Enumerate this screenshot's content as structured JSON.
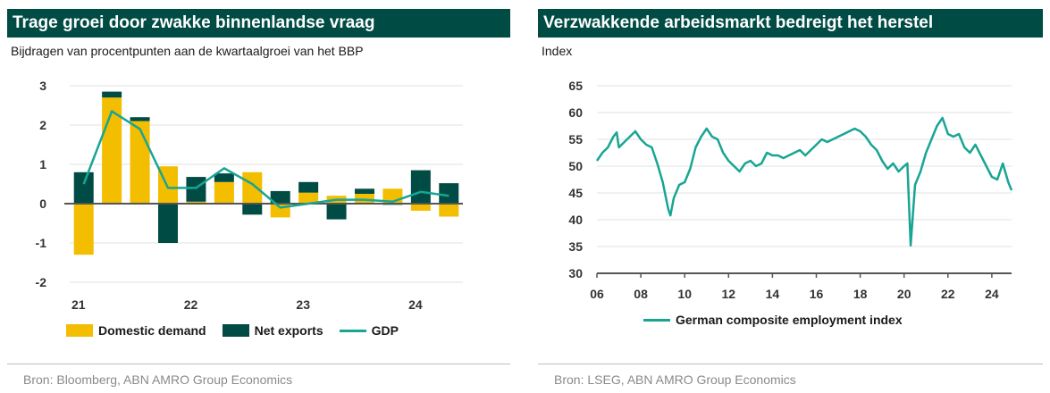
{
  "colors": {
    "title_bg": "#004c45",
    "domestic": "#f3bd00",
    "net_exports": "#004c45",
    "gdp": "#18a594",
    "axis": "#555555",
    "grid": "#e2e2e2"
  },
  "left": {
    "title": "Trage groei door zwakke binnenlandse vraag",
    "subtitle": "Bijdragen van procentpunten aan de kwartaalgroei van het BBP",
    "source": "Bron: Bloomberg, ABN AMRO Group Economics",
    "legend": [
      "Domestic demand",
      "Net exports",
      "GDP"
    ]
  },
  "right": {
    "title": "Verzwakkende arbeidsmarkt bedreigt het herstel",
    "subtitle": "Index",
    "source": "Bron: LSEG, ABN AMRO Group Economics",
    "legend": [
      "German composite employment index"
    ]
  },
  "chart_data": [
    {
      "type": "bar",
      "title": "Trage groei door zwakke binnenlandse vraag",
      "subtitle": "Bijdragen van procentpunten aan de kwartaalgroei van het BBP",
      "stacked": true,
      "categories": [
        "2021-Q1",
        "2021-Q2",
        "2021-Q3",
        "2021-Q4",
        "2022-Q1",
        "2022-Q2",
        "2022-Q3",
        "2022-Q4",
        "2023-Q1",
        "2023-Q2",
        "2023-Q3",
        "2023-Q4",
        "2024-Q1",
        "2024-Q2"
      ],
      "x_tick_labels": [
        "21",
        "22",
        "23",
        "24"
      ],
      "x_tick_positions": [
        0,
        4,
        8,
        12
      ],
      "y_tick_labels": [
        "3",
        "2",
        "1",
        "0",
        "-1",
        "-2"
      ],
      "ylim": [
        -2,
        3
      ],
      "series": [
        {
          "name": "Domestic demand",
          "kind": "bar",
          "values": [
            -1.3,
            2.7,
            2.1,
            0.95,
            0.05,
            0.55,
            0.8,
            -0.35,
            0.28,
            0.2,
            0.25,
            0.38,
            -0.18,
            -0.33
          ]
        },
        {
          "name": "Net exports",
          "kind": "bar",
          "values": [
            0.8,
            0.15,
            0.1,
            -1.0,
            0.63,
            0.22,
            -0.28,
            0.32,
            0.27,
            -0.4,
            0.13,
            -0.03,
            0.85,
            0.52
          ]
        },
        {
          "name": "GDP",
          "kind": "line",
          "values": [
            0.5,
            2.35,
            1.9,
            0.4,
            0.4,
            0.9,
            0.5,
            -0.1,
            0.0,
            0.1,
            0.1,
            0.05,
            0.3,
            0.2
          ]
        }
      ],
      "legend_position": "bottom",
      "grid": true
    },
    {
      "type": "line",
      "title": "Verzwakkende arbeidsmarkt bedreigt het herstel",
      "ylabel": "Index",
      "x_tick_labels": [
        "06",
        "08",
        "10",
        "12",
        "14",
        "16",
        "18",
        "20",
        "22",
        "24"
      ],
      "x_tick_years": [
        2006,
        2008,
        2010,
        2012,
        2014,
        2016,
        2018,
        2020,
        2022,
        2024
      ],
      "xlim": [
        2006,
        2024.9
      ],
      "y_tick_labels": [
        "65",
        "60",
        "55",
        "50",
        "45",
        "40",
        "35",
        "30"
      ],
      "ylim": [
        30,
        65
      ],
      "series": [
        {
          "name": "German composite employment index",
          "x": [
            2006.0,
            2006.25,
            2006.5,
            2006.75,
            2006.9,
            2007.0,
            2007.25,
            2007.5,
            2007.75,
            2008.0,
            2008.25,
            2008.5,
            2008.75,
            2009.0,
            2009.25,
            2009.35,
            2009.5,
            2009.75,
            2010.0,
            2010.25,
            2010.5,
            2010.75,
            2011.0,
            2011.25,
            2011.5,
            2011.75,
            2012.0,
            2012.25,
            2012.5,
            2012.75,
            2013.0,
            2013.25,
            2013.5,
            2013.75,
            2014.0,
            2014.25,
            2014.5,
            2014.75,
            2015.0,
            2015.25,
            2015.5,
            2015.75,
            2016.0,
            2016.25,
            2016.5,
            2016.75,
            2017.0,
            2017.25,
            2017.5,
            2017.75,
            2018.0,
            2018.25,
            2018.5,
            2018.75,
            2019.0,
            2019.25,
            2019.5,
            2019.75,
            2020.0,
            2020.15,
            2020.3,
            2020.5,
            2020.75,
            2021.0,
            2021.25,
            2021.5,
            2021.75,
            2022.0,
            2022.25,
            2022.5,
            2022.75,
            2023.0,
            2023.25,
            2023.5,
            2023.75,
            2024.0,
            2024.25,
            2024.5,
            2024.75,
            2024.9
          ],
          "y": [
            51.0,
            52.5,
            53.5,
            55.5,
            56.3,
            53.5,
            54.5,
            55.5,
            56.5,
            55.0,
            54.0,
            53.5,
            50.5,
            47.0,
            42.0,
            40.8,
            44.0,
            46.5,
            47.0,
            49.5,
            53.5,
            55.5,
            57.0,
            55.5,
            55.0,
            52.5,
            51.0,
            50.0,
            49.0,
            50.5,
            51.0,
            50.0,
            50.5,
            52.5,
            52.0,
            52.0,
            51.5,
            52.0,
            52.5,
            53.0,
            52.0,
            53.0,
            54.0,
            55.0,
            54.5,
            55.0,
            55.5,
            56.0,
            56.5,
            57.0,
            56.5,
            55.5,
            54.0,
            53.0,
            51.0,
            49.5,
            50.5,
            49.0,
            50.0,
            50.5,
            35.2,
            46.5,
            49.0,
            52.5,
            55.0,
            57.5,
            59.0,
            56.0,
            55.5,
            56.0,
            53.5,
            52.5,
            54.0,
            52.0,
            50.0,
            48.0,
            47.5,
            50.5,
            47.0,
            45.5
          ]
        }
      ],
      "legend_position": "bottom",
      "grid": true
    }
  ]
}
